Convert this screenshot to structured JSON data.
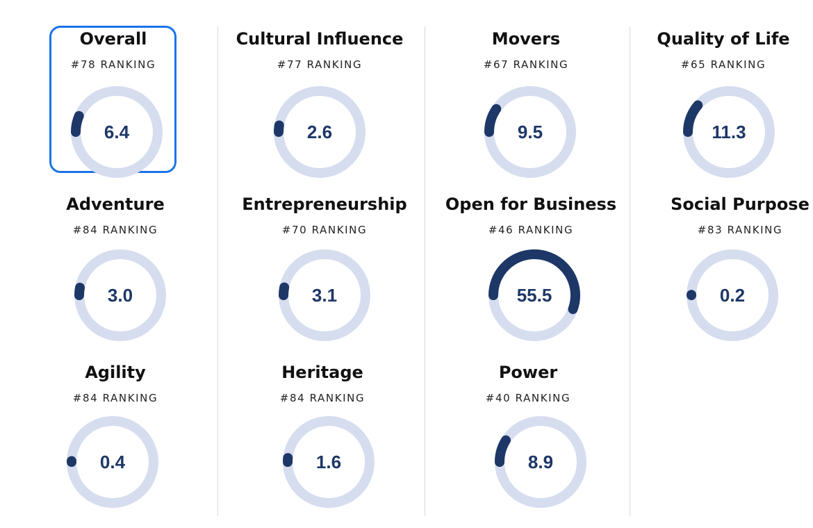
{
  "colors": {
    "track": "#d6ddef",
    "progress": "#1d3767",
    "selected_border": "#1a73e8",
    "divider": "#d6d9de"
  },
  "scale_max": 100,
  "metrics": [
    {
      "name": "Overall",
      "ranking": "#78 RANKING",
      "score": "6.4",
      "value": 6.4,
      "selected": true
    },
    {
      "name": "Cultural Influence",
      "ranking": "#77 RANKING",
      "score": "2.6",
      "value": 2.6
    },
    {
      "name": "Movers",
      "ranking": "#67 RANKING",
      "score": "9.5",
      "value": 9.5
    },
    {
      "name": "Quality of Life",
      "ranking": "#65 RANKING",
      "score": "11.3",
      "value": 11.3
    },
    {
      "name": "Adventure",
      "ranking": "#84 RANKING",
      "score": "3.0",
      "value": 3.0
    },
    {
      "name": "Entrepreneurship",
      "ranking": "#70 RANKING",
      "score": "3.1",
      "value": 3.1
    },
    {
      "name": "Open for Business",
      "ranking": "#46 RANKING",
      "score": "55.5",
      "value": 55.5
    },
    {
      "name": "Social Purpose",
      "ranking": "#83 RANKING",
      "score": "0.2",
      "value": 0.2
    },
    {
      "name": "Agility",
      "ranking": "#84 RANKING",
      "score": "0.4",
      "value": 0.4
    },
    {
      "name": "Heritage",
      "ranking": "#84 RANKING",
      "score": "1.6",
      "value": 1.6
    },
    {
      "name": "Power",
      "ranking": "#40 RANKING",
      "score": "8.9",
      "value": 8.9
    }
  ]
}
